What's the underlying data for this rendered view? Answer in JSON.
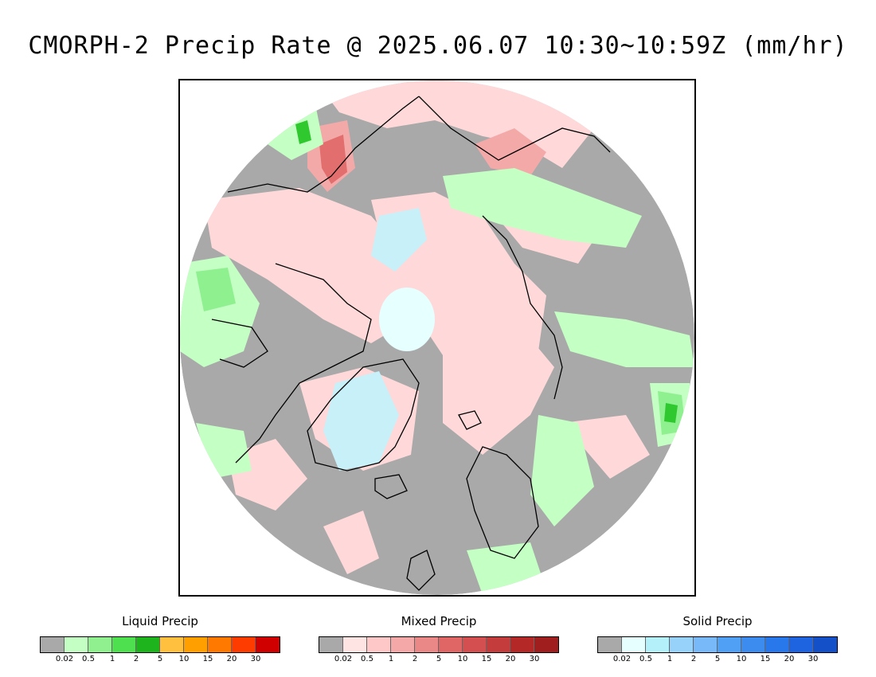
{
  "title": "CMORPH-2 Precip Rate @ 2025.06.07 10:30~10:59Z (mm/hr)",
  "map": {
    "projection": "north polar stereographic",
    "colors": {
      "no_precip": "#a9a9a9",
      "outside": "#ffffff",
      "coastline": "#000000",
      "light_mixed": "#ffd9d9",
      "medium_mixed": "#f4a9a9",
      "heavy_mixed": "#e26e6e",
      "light_liquid": "#c4ffc4",
      "medium_liquid": "#8ff08f",
      "heavy_liquid": "#2fc92f",
      "light_solid": "#e6ffff",
      "medium_solid": "#c8f0f8"
    }
  },
  "legends": [
    {
      "title": "Liquid Precip",
      "colors": [
        "#a9a9a9",
        "#c4ffc4",
        "#90f090",
        "#4ee04e",
        "#1eb41e",
        "#ffc040",
        "#ffa000",
        "#ff7800",
        "#ff3c00",
        "#d00000"
      ],
      "ticks": [
        "0.02",
        "0.5",
        "1",
        "2",
        "5",
        "10",
        "15",
        "20",
        "30"
      ]
    },
    {
      "title": "Mixed Precip",
      "colors": [
        "#a9a9a9",
        "#ffe4e4",
        "#ffc8c8",
        "#f4a8a8",
        "#ea8888",
        "#e06666",
        "#d45050",
        "#c43c3c",
        "#b42828",
        "#a01e1e"
      ],
      "ticks": [
        "0.02",
        "0.5",
        "1",
        "2",
        "5",
        "10",
        "15",
        "20",
        "30"
      ]
    },
    {
      "title": "Solid Precip",
      "colors": [
        "#a9a9a9",
        "#e6ffff",
        "#b4f0fa",
        "#96d2fa",
        "#78b9fa",
        "#50a0f5",
        "#3c8cf0",
        "#2878eb",
        "#1e64e1",
        "#1450c8"
      ],
      "ticks": [
        "0.02",
        "0.5",
        "1",
        "2",
        "5",
        "10",
        "15",
        "20",
        "30"
      ]
    }
  ]
}
